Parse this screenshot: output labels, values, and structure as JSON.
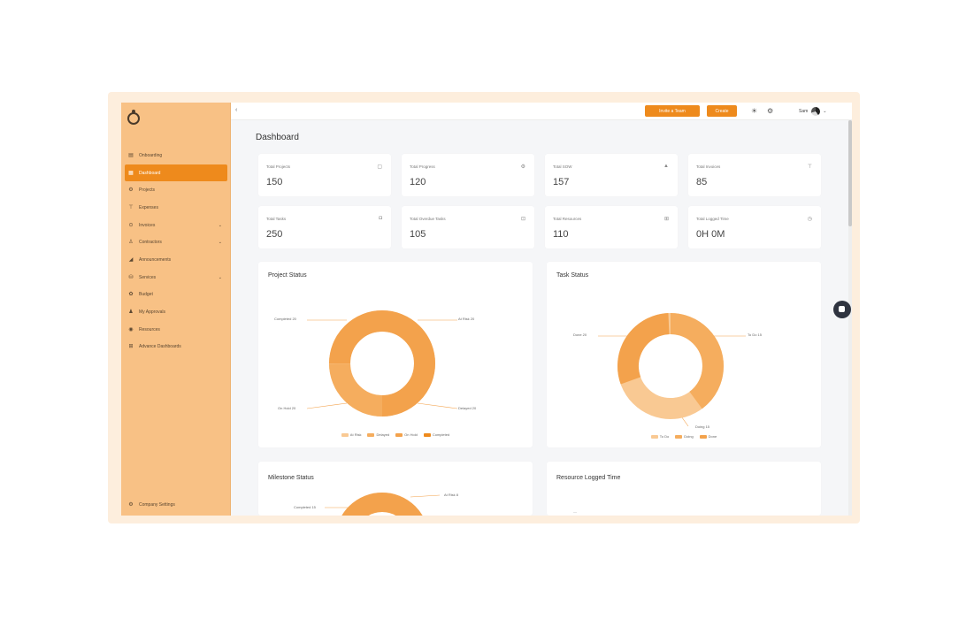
{
  "sidebar": {
    "items": [
      {
        "label": "Onboarding",
        "icon": "document-icon",
        "active": false
      },
      {
        "label": "Dashboard",
        "icon": "chart-icon",
        "active": true
      },
      {
        "label": "Projects",
        "icon": "folder-icon",
        "active": false
      },
      {
        "label": "Expenses",
        "icon": "filter-icon",
        "active": false
      },
      {
        "label": "Invoices",
        "icon": "invoice-icon",
        "active": false,
        "caret": true
      },
      {
        "label": "Contractors",
        "icon": "person-icon",
        "active": false,
        "caret": true
      },
      {
        "label": "Announcements",
        "icon": "megaphone-icon",
        "active": false
      },
      {
        "label": "Services",
        "icon": "services-icon",
        "active": false,
        "caret": true
      },
      {
        "label": "Budget",
        "icon": "budget-icon",
        "active": false
      },
      {
        "label": "My Approvals",
        "icon": "approval-icon",
        "active": false
      },
      {
        "label": "Resources",
        "icon": "resources-icon",
        "active": false
      },
      {
        "label": "Advance Dashboards",
        "icon": "dashboard-icon",
        "active": false
      }
    ],
    "footer_label": "Company Settings"
  },
  "topbar": {
    "invite_label": "Invite a Team",
    "create_label": "Create",
    "user_name": "Sam"
  },
  "page_title": "Dashboard",
  "stats": [
    {
      "label": "Total Projects",
      "value": "150"
    },
    {
      "label": "Total Progress",
      "value": "120"
    },
    {
      "label": "Total SOW",
      "value": "157"
    },
    {
      "label": "Total Invoices",
      "value": "85"
    },
    {
      "label": "Total Tasks",
      "value": "250"
    },
    {
      "label": "Total Overdue Tasks",
      "value": "105"
    },
    {
      "label": "Total Resources",
      "value": "110"
    },
    {
      "label": "Total Logged Time",
      "value": "0H 0M"
    }
  ],
  "charts": {
    "project_status": {
      "title": "Project Status",
      "labels": [
        "Completed 20",
        "At Risk 20",
        "On Hold 20",
        "Delayed 20"
      ],
      "legend": [
        "At Risk",
        "Delayed",
        "On Hold",
        "Completed"
      ]
    },
    "task_status": {
      "title": "Task Status",
      "labels": [
        "Done 20",
        "To Do 15",
        "Doing 15"
      ],
      "legend": [
        "To Do",
        "Doing",
        "Done"
      ]
    },
    "milestone_status": {
      "title": "Milestone Status",
      "labels": [
        "Completed 15",
        "At Risk 8"
      ]
    },
    "resource_logged_time": {
      "title": "Resource Logged Time"
    }
  },
  "colors": {
    "accent": "#ee8a1c",
    "sidebar_bg": "#f8c185",
    "donut_dark": "#f3a24c",
    "donut_mid": "#f7b46c",
    "donut_light": "#f9c993"
  }
}
